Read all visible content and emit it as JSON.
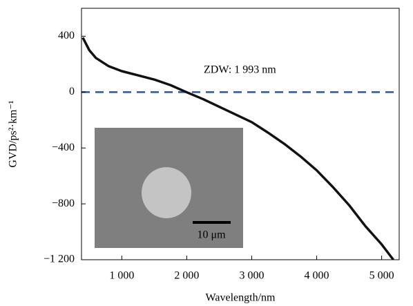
{
  "chart_data": {
    "type": "line",
    "x_label": "Wavelength/nm",
    "y_label": "GVD/ps²·km⁻¹",
    "annotation": "ZDW: 1 993 nm",
    "inset_label": "10 μm",
    "x": [
      400,
      500,
      600,
      800,
      1000,
      1250,
      1500,
      1750,
      1993,
      2250,
      2500,
      2750,
      3000,
      3250,
      3500,
      3750,
      4000,
      4250,
      4500,
      4750,
      5000,
      5180
    ],
    "series": [
      {
        "color": "#111111",
        "values": [
          390,
          300,
          245,
          185,
          150,
          120,
          90,
          50,
          0,
          -50,
          -105,
          -160,
          -215,
          -290,
          -370,
          -460,
          -560,
          -680,
          -810,
          -960,
          -1090,
          -1200
        ]
      }
    ],
    "reference_line": {
      "value": 0,
      "color": "#2f5597"
    },
    "xlim": [
      380,
      5270
    ],
    "ylim": [
      -1200,
      600
    ],
    "xticks": [
      {
        "value": 1000,
        "label": "1 000"
      },
      {
        "value": 2000,
        "label": "2 000"
      },
      {
        "value": 3000,
        "label": "3 000"
      },
      {
        "value": 4000,
        "label": "4 000"
      },
      {
        "value": 5000,
        "label": "5 000"
      }
    ],
    "yticks": [
      {
        "value": -1200,
        "label": "−1 200"
      },
      {
        "value": -800,
        "label": "−800"
      },
      {
        "value": -400,
        "label": "−400"
      },
      0,
      400
    ]
  }
}
